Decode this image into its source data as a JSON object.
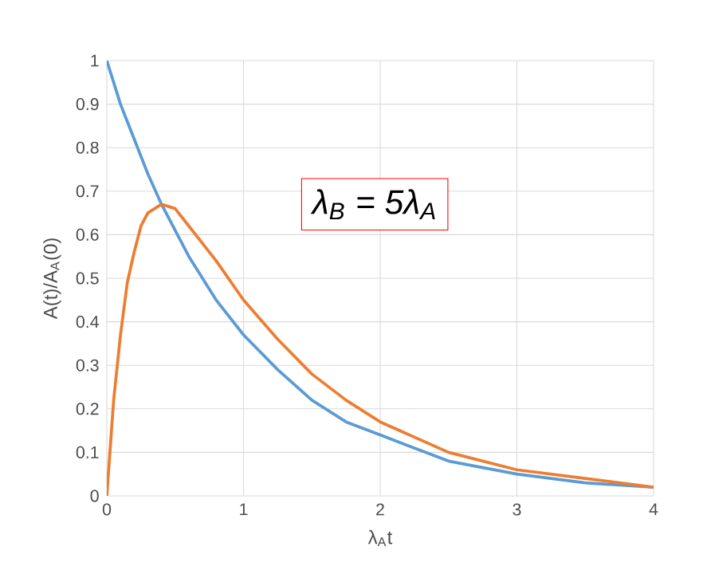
{
  "chart_data": {
    "type": "line",
    "xlabel": "λ$_{A}$t",
    "ylabel": "A(t)/A$_{A}$(0)",
    "annotations": [
      "λ$_{B}$ = 5λ$_{A}$"
    ],
    "xlim": [
      0,
      4
    ],
    "ylim": [
      0,
      1
    ],
    "xticks": [
      0,
      1,
      2,
      3,
      4
    ],
    "yticks": [
      0,
      0.1,
      0.2,
      0.3,
      0.4,
      0.5,
      0.6,
      0.7,
      0.8,
      0.9,
      1
    ],
    "grid": true,
    "marker": "none",
    "line_style": "solid",
    "series": [
      {
        "color": "#5b9bd5",
        "x": [
          0,
          0.05,
          0.1,
          0.15,
          0.2,
          0.25,
          0.3,
          0.4,
          0.5,
          0.6,
          0.8,
          1,
          1.25,
          1.5,
          1.75,
          2,
          2.5,
          3,
          3.5,
          4
        ],
        "values": [
          1,
          0.95,
          0.9,
          0.86,
          0.82,
          0.78,
          0.74,
          0.67,
          0.61,
          0.55,
          0.45,
          0.37,
          0.29,
          0.22,
          0.17,
          0.14,
          0.08,
          0.05,
          0.03,
          0.02
        ]
      },
      {
        "color": "#ed7d31",
        "x": [
          0,
          0.05,
          0.1,
          0.15,
          0.2,
          0.25,
          0.3,
          0.4,
          0.5,
          0.6,
          0.8,
          1,
          1.25,
          1.5,
          1.75,
          2,
          2.5,
          3,
          3.5,
          4
        ],
        "values": [
          0,
          0.22,
          0.37,
          0.49,
          0.56,
          0.62,
          0.65,
          0.67,
          0.66,
          0.62,
          0.54,
          0.45,
          0.36,
          0.28,
          0.22,
          0.17,
          0.1,
          0.06,
          0.04,
          0.02
        ]
      }
    ]
  }
}
